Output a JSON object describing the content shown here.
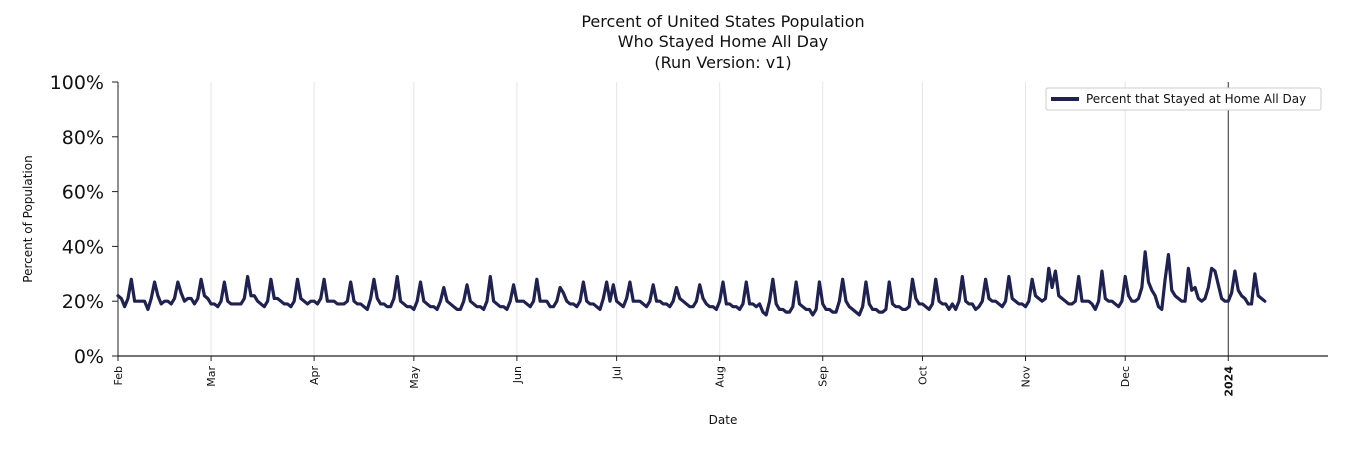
{
  "chart_data": {
    "type": "line",
    "title_lines": [
      "Percent of United States Population",
      "Who Stayed Home All Day",
      "(Run Version: v1)"
    ],
    "xlabel": "Date",
    "ylabel": "Percent of Population",
    "ylim": [
      0,
      100
    ],
    "yticks": [
      0,
      20,
      40,
      60,
      80,
      100
    ],
    "ytick_labels": [
      "0%",
      "20%",
      "40%",
      "60%",
      "80%",
      "100%"
    ],
    "x_range": [
      "2023-02-01",
      "2024-01-31"
    ],
    "x_ticks": [
      {
        "date": "2023-02-01",
        "label": "Feb"
      },
      {
        "date": "2023-03-01",
        "label": "Mar"
      },
      {
        "date": "2023-04-01",
        "label": "Apr"
      },
      {
        "date": "2023-05-01",
        "label": "May"
      },
      {
        "date": "2023-06-01",
        "label": "Jun"
      },
      {
        "date": "2023-07-01",
        "label": "Jul"
      },
      {
        "date": "2023-08-01",
        "label": "Aug"
      },
      {
        "date": "2023-09-01",
        "label": "Sep"
      },
      {
        "date": "2023-10-01",
        "label": "Oct"
      },
      {
        "date": "2023-11-01",
        "label": "Nov"
      },
      {
        "date": "2023-12-01",
        "label": "Dec"
      },
      {
        "date": "2024-01-01",
        "label": "2024",
        "bold": true
      }
    ],
    "vertical_marker": "2024-01-01",
    "legend_position": "top-right",
    "colors": {
      "line": "#1f2150",
      "grid": "#e6e6e6",
      "axis": "#222222",
      "marker": "#333333"
    },
    "series": [
      {
        "name": "Percent that Stayed at Home All Day",
        "start": "2023-02-01",
        "values": [
          22,
          21,
          18,
          21,
          28,
          20,
          20,
          20,
          20,
          17,
          21,
          27,
          22,
          19,
          20,
          20,
          19,
          21,
          27,
          23,
          20,
          21,
          21,
          19,
          21,
          28,
          22,
          21,
          19,
          19,
          18,
          20,
          27,
          20,
          19,
          19,
          19,
          19,
          21,
          29,
          22,
          22,
          20,
          19,
          18,
          20,
          28,
          21,
          21,
          20,
          19,
          19,
          18,
          20,
          28,
          21,
          20,
          19,
          20,
          20,
          19,
          21,
          28,
          20,
          20,
          20,
          19,
          19,
          19,
          20,
          27,
          20,
          19,
          19,
          18,
          17,
          21,
          28,
          21,
          19,
          19,
          18,
          18,
          21,
          29,
          20,
          19,
          18,
          18,
          17,
          20,
          27,
          20,
          19,
          18,
          18,
          17,
          20,
          25,
          20,
          19,
          18,
          17,
          17,
          20,
          26,
          20,
          19,
          18,
          18,
          17,
          20,
          29,
          20,
          19,
          18,
          18,
          17,
          20,
          26,
          20,
          20,
          20,
          19,
          18,
          20,
          28,
          20,
          20,
          20,
          18,
          18,
          20,
          25,
          23,
          20,
          19,
          19,
          18,
          20,
          27,
          20,
          19,
          19,
          18,
          17,
          21,
          27,
          20,
          26,
          20,
          19,
          18,
          21,
          27,
          20,
          20,
          20,
          19,
          18,
          20,
          26,
          20,
          20,
          19,
          19,
          18,
          20,
          25,
          21,
          20,
          19,
          18,
          18,
          20,
          26,
          21,
          19,
          18,
          18,
          17,
          20,
          27,
          19,
          19,
          18,
          18,
          17,
          19,
          27,
          19,
          19,
          18,
          19,
          16,
          15,
          20,
          28,
          19,
          17,
          17,
          16,
          16,
          18,
          27,
          19,
          18,
          17,
          17,
          15,
          17,
          27,
          19,
          17,
          17,
          16,
          16,
          20,
          28,
          20,
          18,
          17,
          16,
          15,
          18,
          27,
          19,
          17,
          17,
          16,
          16,
          17,
          27,
          19,
          18,
          18,
          17,
          17,
          18,
          28,
          21,
          19,
          19,
          18,
          17,
          19,
          28,
          20,
          19,
          19,
          17,
          19,
          17,
          20,
          29,
          20,
          19,
          19,
          17,
          18,
          20,
          28,
          21,
          20,
          20,
          19,
          18,
          20,
          29,
          21,
          20,
          19,
          19,
          18,
          20,
          28,
          22,
          21,
          20,
          21,
          32,
          25,
          31,
          22,
          21,
          20,
          19,
          19,
          20,
          29,
          20,
          20,
          20,
          19,
          17,
          20,
          31,
          21,
          20,
          20,
          19,
          18,
          20,
          29,
          22,
          20,
          20,
          21,
          25,
          38,
          27,
          24,
          22,
          18,
          17,
          28,
          37,
          24,
          22,
          21,
          20,
          20,
          32,
          24,
          25,
          21,
          20,
          21,
          25,
          32,
          31,
          26,
          21,
          20,
          20,
          23,
          31,
          24,
          22,
          21,
          19,
          19,
          30,
          22,
          21,
          20
        ]
      }
    ]
  }
}
